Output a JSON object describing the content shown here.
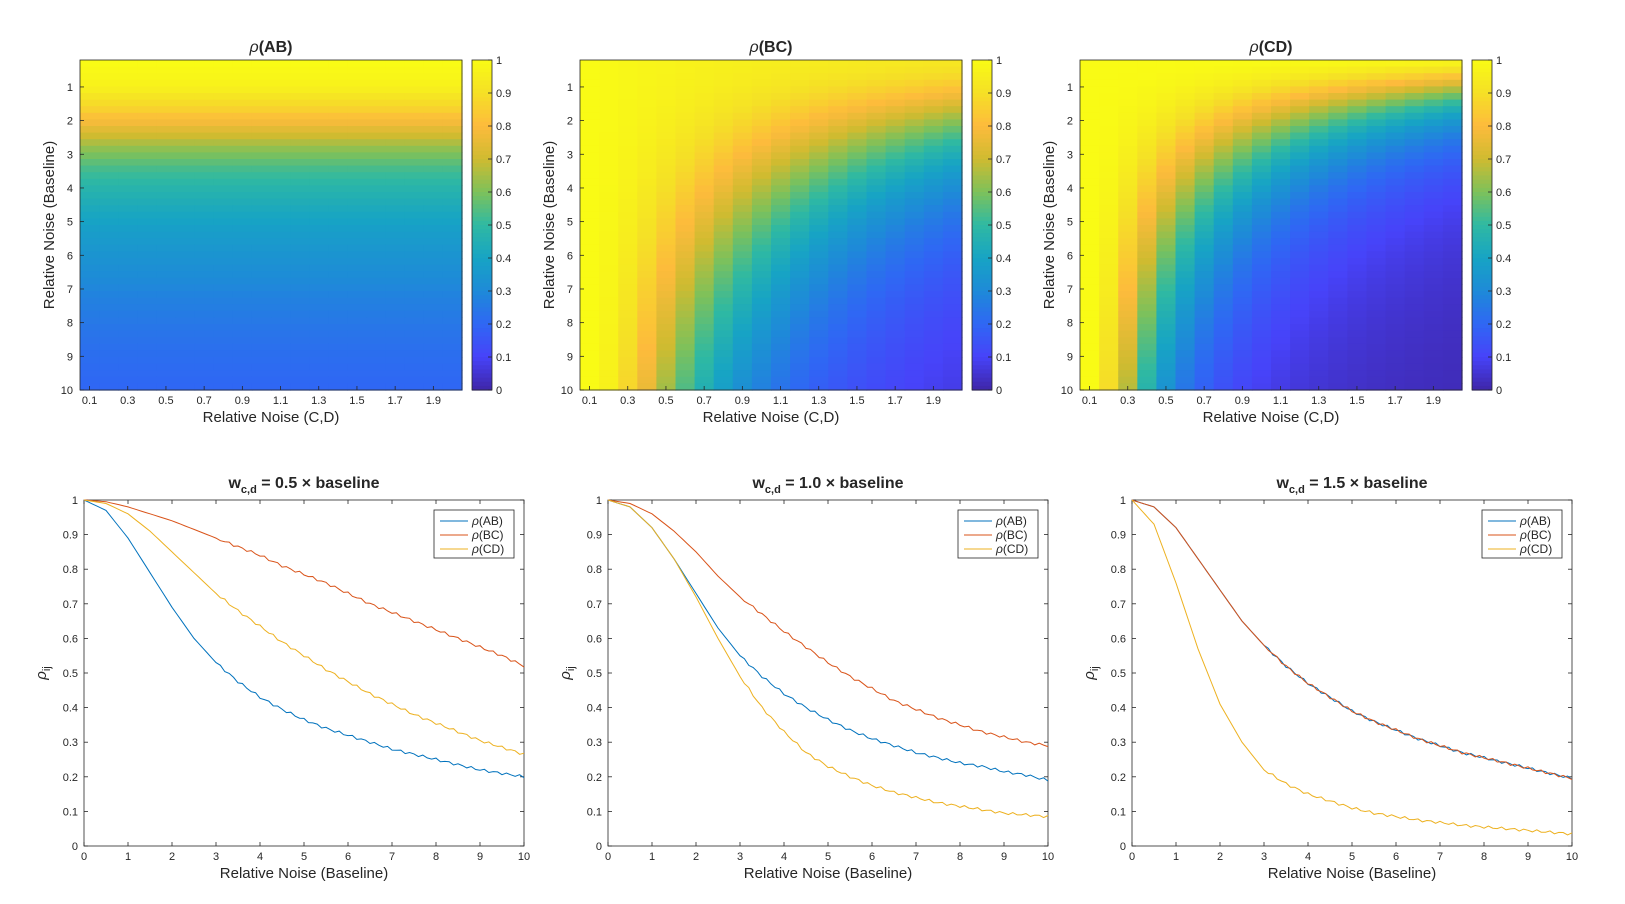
{
  "colorbar": {
    "ticks": [
      "0",
      "0.1",
      "0.2",
      "0.3",
      "0.4",
      "0.5",
      "0.6",
      "0.7",
      "0.8",
      "0.9",
      "1"
    ],
    "colors": [
      "#3e26a8",
      "#4743f9",
      "#2f67f4",
      "#1e8ad8",
      "#17a4c4",
      "#2fb9a2",
      "#7ec15a",
      "#cfbb30",
      "#fdbb3c",
      "#f5e026",
      "#f9fb15"
    ]
  },
  "series_colors": [
    "#0072BD",
    "#D95319",
    "#EDB120"
  ],
  "chart_data": [
    {
      "type": "heatmap",
      "title": "ρ(AB)",
      "title_base": "ρ",
      "title_tail": "(AB)",
      "xlabel": "Relative Noise (C,D)",
      "ylabel": "Relative Noise (Baseline)",
      "x_tick_labels": [
        "0.1",
        "0.3",
        "0.5",
        "0.7",
        "0.9",
        "1.1",
        "1.3",
        "1.5",
        "1.7",
        "1.9"
      ],
      "y_tick_labels": [
        "1",
        "2",
        "3",
        "4",
        "5",
        "6",
        "7",
        "8",
        "9",
        "10"
      ],
      "n_cols": 20,
      "n_rows": 50,
      "row_values": [
        1.0,
        0.99,
        0.98,
        0.97,
        0.95,
        0.92,
        0.89,
        0.86,
        0.82,
        0.78,
        0.74,
        0.7,
        0.66,
        0.62,
        0.59,
        0.56,
        0.53,
        0.51,
        0.49,
        0.47,
        0.455,
        0.44,
        0.425,
        0.41,
        0.395,
        0.38,
        0.37,
        0.36,
        0.35,
        0.34,
        0.33,
        0.32,
        0.31,
        0.3,
        0.29,
        0.28,
        0.272,
        0.265,
        0.258,
        0.25,
        0.243,
        0.237,
        0.231,
        0.226,
        0.221,
        0.216,
        0.212,
        0.208,
        0.204,
        0.2
      ],
      "colorbar_range": [
        0,
        1
      ]
    },
    {
      "type": "heatmap",
      "title": "ρ(BC)",
      "title_base": "ρ",
      "title_tail": "(BC)",
      "xlabel": "Relative Noise (C,D)",
      "ylabel": "Relative Noise (Baseline)",
      "x_tick_labels": [
        "0.1",
        "0.3",
        "0.5",
        "0.7",
        "0.9",
        "1.1",
        "1.3",
        "1.5",
        "1.7",
        "1.9"
      ],
      "y_tick_labels": [
        "1",
        "2",
        "3",
        "4",
        "5",
        "6",
        "7",
        "8",
        "9",
        "10"
      ],
      "n_cols": 20,
      "n_rows": 50,
      "col_weights": [
        0.0,
        0.1,
        0.2,
        0.3,
        0.4,
        0.5,
        0.6,
        0.7,
        0.8,
        0.9,
        1.0,
        1.1,
        1.2,
        1.3,
        1.4,
        1.5,
        1.6,
        1.7,
        1.8,
        1.9
      ],
      "colorbar_range": [
        0,
        1
      ]
    },
    {
      "type": "heatmap",
      "title": "ρ(CD)",
      "title_base": "ρ",
      "title_tail": "(CD)",
      "xlabel": "Relative Noise (C,D)",
      "ylabel": "Relative Noise (Baseline)",
      "x_tick_labels": [
        "0.1",
        "0.3",
        "0.5",
        "0.7",
        "0.9",
        "1.1",
        "1.3",
        "1.5",
        "1.7",
        "1.9"
      ],
      "y_tick_labels": [
        "1",
        "2",
        "3",
        "4",
        "5",
        "6",
        "7",
        "8",
        "9",
        "10"
      ],
      "n_cols": 20,
      "n_rows": 50,
      "col_weights": [
        0.0,
        0.1,
        0.2,
        0.3,
        0.4,
        0.5,
        0.6,
        0.7,
        0.8,
        0.9,
        1.0,
        1.1,
        1.2,
        1.3,
        1.4,
        1.5,
        1.6,
        1.7,
        1.8,
        1.9
      ],
      "colorbar_range": [
        0,
        1
      ]
    },
    {
      "type": "line",
      "title": "w_{c,d} = 0.5 × baseline",
      "title_pre": "w",
      "title_sub": "c,d",
      "title_post": " = 0.5 × baseline",
      "xlabel": "Relative Noise (Baseline)",
      "ylabel": "ρij",
      "ylabel_base": "ρ",
      "ylabel_sub": "ij",
      "x_ticks": [
        "0",
        "1",
        "2",
        "3",
        "4",
        "5",
        "6",
        "7",
        "8",
        "9",
        "10"
      ],
      "y_ticks": [
        "0",
        "0.1",
        "0.2",
        "0.3",
        "0.4",
        "0.5",
        "0.6",
        "0.7",
        "0.8",
        "0.9",
        "1"
      ],
      "xlim": [
        0,
        10
      ],
      "ylim": [
        0,
        1
      ],
      "legend_position": "top-right",
      "x": [
        0,
        0.5,
        1,
        1.5,
        2,
        2.5,
        3,
        3.5,
        4,
        4.5,
        5,
        5.5,
        6,
        6.5,
        7,
        7.5,
        8,
        8.5,
        9,
        9.5,
        10
      ],
      "series": [
        {
          "name": "ρ(AB)",
          "base": "ρ",
          "tail": "(AB)",
          "values": [
            1.0,
            0.97,
            0.89,
            0.79,
            0.69,
            0.6,
            0.53,
            0.475,
            0.43,
            0.395,
            0.365,
            0.34,
            0.32,
            0.3,
            0.28,
            0.265,
            0.25,
            0.235,
            0.22,
            0.21,
            0.2
          ]
        },
        {
          "name": "ρ(BC)",
          "base": "ρ",
          "tail": "(BC)",
          "values": [
            1.0,
            0.995,
            0.98,
            0.96,
            0.94,
            0.915,
            0.89,
            0.865,
            0.84,
            0.81,
            0.785,
            0.76,
            0.73,
            0.7,
            0.675,
            0.65,
            0.625,
            0.6,
            0.575,
            0.55,
            0.52
          ]
        },
        {
          "name": "ρ(CD)",
          "base": "ρ",
          "tail": "(CD)",
          "values": [
            1.0,
            0.99,
            0.96,
            0.91,
            0.85,
            0.79,
            0.73,
            0.68,
            0.635,
            0.59,
            0.55,
            0.51,
            0.475,
            0.44,
            0.41,
            0.38,
            0.355,
            0.33,
            0.305,
            0.285,
            0.265
          ]
        }
      ]
    },
    {
      "type": "line",
      "title": "w_{c,d} = 1.0 × baseline",
      "title_pre": "w",
      "title_sub": "c,d",
      "title_post": " = 1.0 × baseline",
      "xlabel": "Relative Noise (Baseline)",
      "ylabel": "ρij",
      "ylabel_base": "ρ",
      "ylabel_sub": "ij",
      "x_ticks": [
        "0",
        "1",
        "2",
        "3",
        "4",
        "5",
        "6",
        "7",
        "8",
        "9",
        "10"
      ],
      "y_ticks": [
        "0",
        "0.1",
        "0.2",
        "0.3",
        "0.4",
        "0.5",
        "0.6",
        "0.7",
        "0.8",
        "0.9",
        "1"
      ],
      "xlim": [
        0,
        10
      ],
      "ylim": [
        0,
        1
      ],
      "legend_position": "top-right",
      "x": [
        0,
        0.5,
        1,
        1.5,
        2,
        2.5,
        3,
        3.5,
        4,
        4.5,
        5,
        5.5,
        6,
        6.5,
        7,
        7.5,
        8,
        8.5,
        9,
        9.5,
        10
      ],
      "series": [
        {
          "name": "ρ(AB)",
          "base": "ρ",
          "tail": "(AB)",
          "values": [
            1.0,
            0.98,
            0.92,
            0.83,
            0.73,
            0.63,
            0.55,
            0.49,
            0.44,
            0.4,
            0.365,
            0.335,
            0.31,
            0.29,
            0.27,
            0.255,
            0.24,
            0.23,
            0.215,
            0.205,
            0.19
          ]
        },
        {
          "name": "ρ(BC)",
          "base": "ρ",
          "tail": "(BC)",
          "values": [
            1.0,
            0.99,
            0.96,
            0.91,
            0.85,
            0.78,
            0.72,
            0.67,
            0.62,
            0.575,
            0.53,
            0.49,
            0.455,
            0.42,
            0.395,
            0.37,
            0.35,
            0.33,
            0.315,
            0.3,
            0.29
          ]
        },
        {
          "name": "ρ(CD)",
          "base": "ρ",
          "tail": "(CD)",
          "values": [
            1.0,
            0.98,
            0.92,
            0.83,
            0.72,
            0.6,
            0.49,
            0.4,
            0.33,
            0.27,
            0.23,
            0.2,
            0.175,
            0.155,
            0.14,
            0.125,
            0.115,
            0.105,
            0.095,
            0.09,
            0.085
          ]
        }
      ]
    },
    {
      "type": "line",
      "title": "w_{c,d} = 1.5 × baseline",
      "title_pre": "w",
      "title_sub": "c,d",
      "title_post": " = 1.5 × baseline",
      "xlabel": "Relative Noise (Baseline)",
      "ylabel": "ρij",
      "ylabel_base": "ρ",
      "ylabel_sub": "ij",
      "x_ticks": [
        "0",
        "1",
        "2",
        "3",
        "4",
        "5",
        "6",
        "7",
        "8",
        "9",
        "10"
      ],
      "y_ticks": [
        "0",
        "0.1",
        "0.2",
        "0.3",
        "0.4",
        "0.5",
        "0.6",
        "0.7",
        "0.8",
        "0.9",
        "1"
      ],
      "xlim": [
        0,
        10
      ],
      "ylim": [
        0,
        1
      ],
      "legend_position": "top-right",
      "x": [
        0,
        0.5,
        1,
        1.5,
        2,
        2.5,
        3,
        3.5,
        4,
        4.5,
        5,
        5.5,
        6,
        6.5,
        7,
        7.5,
        8,
        8.5,
        9,
        9.5,
        10
      ],
      "series": [
        {
          "name": "ρ(AB)",
          "base": "ρ",
          "tail": "(AB)",
          "values": [
            1.0,
            0.98,
            0.92,
            0.83,
            0.74,
            0.65,
            0.58,
            0.52,
            0.47,
            0.43,
            0.39,
            0.36,
            0.335,
            0.31,
            0.29,
            0.27,
            0.255,
            0.24,
            0.225,
            0.21,
            0.195
          ]
        },
        {
          "name": "ρ(BC)",
          "base": "ρ",
          "tail": "(BC)",
          "values": [
            1.0,
            0.98,
            0.92,
            0.83,
            0.74,
            0.65,
            0.58,
            0.52,
            0.47,
            0.43,
            0.39,
            0.36,
            0.335,
            0.31,
            0.29,
            0.27,
            0.255,
            0.24,
            0.225,
            0.21,
            0.195
          ]
        },
        {
          "name": "ρ(CD)",
          "base": "ρ",
          "tail": "(CD)",
          "values": [
            1.0,
            0.93,
            0.76,
            0.57,
            0.41,
            0.3,
            0.22,
            0.18,
            0.15,
            0.13,
            0.11,
            0.095,
            0.085,
            0.075,
            0.068,
            0.06,
            0.055,
            0.05,
            0.045,
            0.04,
            0.035
          ]
        }
      ]
    }
  ]
}
